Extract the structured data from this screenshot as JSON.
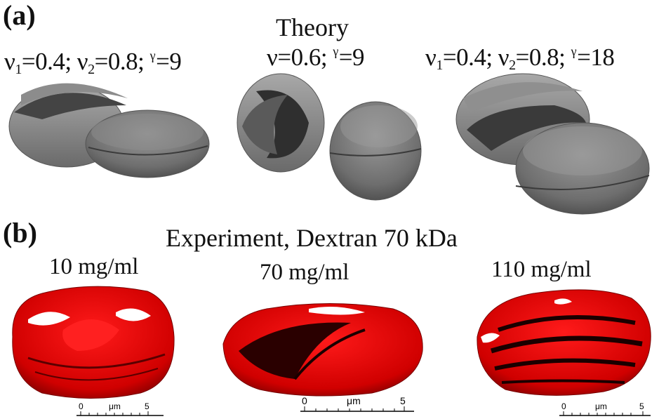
{
  "panel_a": {
    "label": "(a)",
    "title": "Theory",
    "params": [
      {
        "nu1": "0.4",
        "nu2": "0.8",
        "gamma": "9"
      },
      {
        "nu": "0.6",
        "gamma": "9"
      },
      {
        "nu1": "0.4",
        "nu2": "0.8",
        "gamma": "18"
      }
    ]
  },
  "panel_b": {
    "label": "(b)",
    "title": "Experiment, Dextran 70 kDa",
    "samples": [
      {
        "concentration": "10 mg/ml",
        "scale": {
          "start": "0",
          "unit": "μm",
          "end": "5"
        }
      },
      {
        "concentration": "70 mg/ml",
        "scale": {
          "start": "0",
          "unit": "μm",
          "end": "5"
        }
      },
      {
        "concentration": "110 mg/ml",
        "scale": {
          "start": "0",
          "unit": "μm",
          "end": "5"
        }
      }
    ]
  },
  "colors": {
    "theory_shape": "#7a7a7a",
    "experiment_shape": "#e00000",
    "shadow": "#1a0000"
  }
}
